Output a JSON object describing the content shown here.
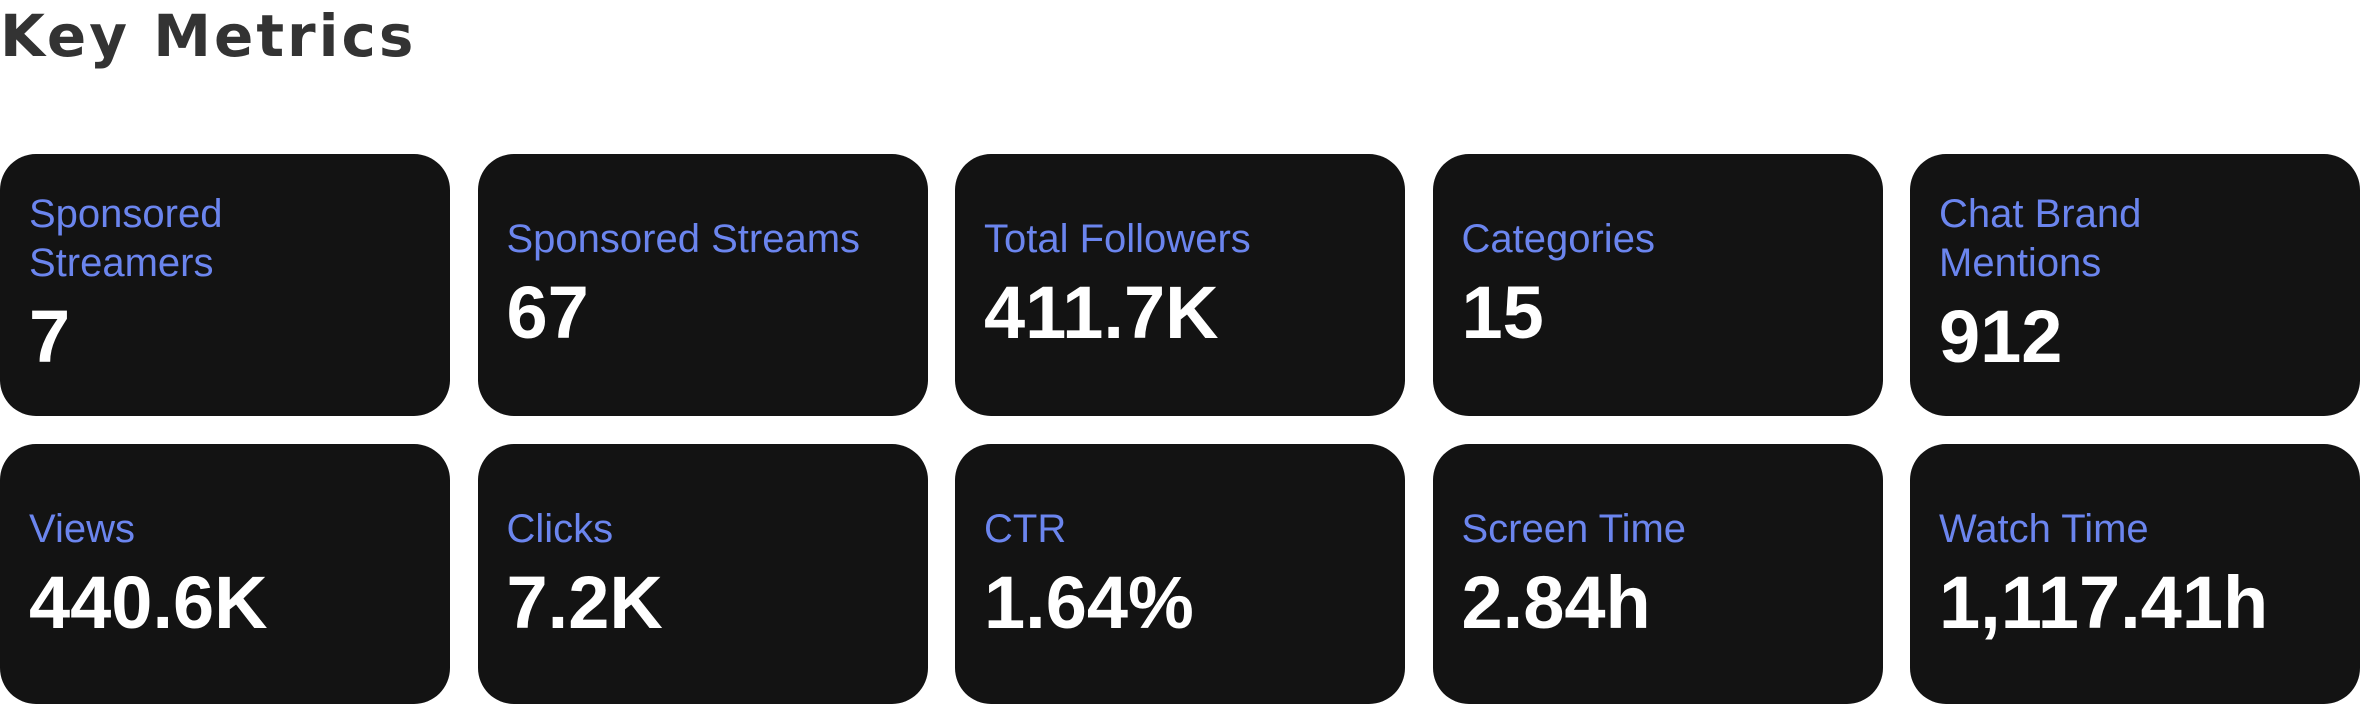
{
  "title": "Key Metrics",
  "metrics_row_1": [
    {
      "label": "Sponsored Streamers",
      "value": "7"
    },
    {
      "label": "Sponsored Streams",
      "value": "67"
    },
    {
      "label": "Total Followers",
      "value": "411.7K"
    },
    {
      "label": "Categories",
      "value": "15"
    },
    {
      "label": "Chat Brand Mentions",
      "value": "912"
    }
  ],
  "metrics_row_2": [
    {
      "label": "Views",
      "value": "440.6K"
    },
    {
      "label": "Clicks",
      "value": "7.2K"
    },
    {
      "label": "CTR",
      "value": "1.64%"
    },
    {
      "label": "Screen Time",
      "value": "2.84h"
    },
    {
      "label": "Watch Time",
      "value": "1,117.41h"
    }
  ],
  "colors": {
    "card_background": "#131313",
    "label": "#6b85ee",
    "value": "#ffffff",
    "title": "#333333"
  }
}
